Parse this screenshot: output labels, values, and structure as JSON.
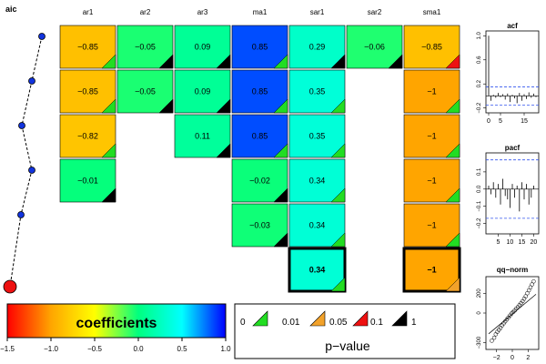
{
  "chart_data": [
    {
      "type": "heatmap",
      "aic_label": "aic",
      "columns": [
        "ar1",
        "ar2",
        "ar3",
        "ma1",
        "sar1",
        "sar2",
        "sma1"
      ],
      "rows": [
        {
          "aic_point": 1,
          "cells": [
            {
              "col": "ar1",
              "coef": -0.85,
              "label": "−0.85",
              "sig": "0"
            },
            {
              "col": "ar2",
              "coef": -0.05,
              "label": "−0.05",
              "sig": "0.1"
            },
            {
              "col": "ar3",
              "coef": 0.09,
              "label": "0.09",
              "sig": "0.1"
            },
            {
              "col": "ma1",
              "coef": 0.85,
              "label": "0.85",
              "sig": "0"
            },
            {
              "col": "sar1",
              "coef": 0.29,
              "label": "0.29",
              "sig": "0.1"
            },
            {
              "col": "sar2",
              "coef": -0.06,
              "label": "−0.06",
              "sig": "0.1"
            },
            {
              "col": "sma1",
              "coef": -0.85,
              "label": "−0.85",
              "sig": "0.05"
            }
          ]
        },
        {
          "aic_point": 2,
          "cells": [
            {
              "col": "ar1",
              "coef": -0.85,
              "label": "−0.85",
              "sig": "0"
            },
            {
              "col": "ar2",
              "coef": -0.05,
              "label": "−0.05",
              "sig": "0.1"
            },
            {
              "col": "ar3",
              "coef": 0.09,
              "label": "0.09",
              "sig": "0.1"
            },
            {
              "col": "ma1",
              "coef": 0.85,
              "label": "0.85",
              "sig": "0"
            },
            {
              "col": "sar1",
              "coef": 0.35,
              "label": "0.35",
              "sig": "0"
            },
            {
              "col": "sma1",
              "coef": -1,
              "label": "−1",
              "sig": "0"
            }
          ]
        },
        {
          "aic_point": 3,
          "cells": [
            {
              "col": "ar1",
              "coef": -0.82,
              "label": "−0.82",
              "sig": "0"
            },
            {
              "col": "ar3",
              "coef": 0.11,
              "label": "0.11",
              "sig": "0.1"
            },
            {
              "col": "ma1",
              "coef": 0.85,
              "label": "0.85",
              "sig": "0"
            },
            {
              "col": "sar1",
              "coef": 0.35,
              "label": "0.35",
              "sig": "0"
            },
            {
              "col": "sma1",
              "coef": -1,
              "label": "−1",
              "sig": "0"
            }
          ]
        },
        {
          "aic_point": 4,
          "cells": [
            {
              "col": "ar1",
              "coef": -0.01,
              "label": "−0.01",
              "sig": "0.1"
            },
            {
              "col": "ma1",
              "coef": -0.02,
              "label": "−0.02",
              "sig": "0.1"
            },
            {
              "col": "sar1",
              "coef": 0.34,
              "label": "0.34",
              "sig": "0"
            },
            {
              "col": "sma1",
              "coef": -1,
              "label": "−1",
              "sig": "0"
            }
          ]
        },
        {
          "aic_point": 5,
          "cells": [
            {
              "col": "ma1",
              "coef": -0.03,
              "label": "−0.03",
              "sig": "0.1"
            },
            {
              "col": "sar1",
              "coef": 0.34,
              "label": "0.34",
              "sig": "0"
            },
            {
              "col": "sma1",
              "coef": -1,
              "label": "−1",
              "sig": "0"
            }
          ]
        },
        {
          "aic_point": 6,
          "best": true,
          "cells": [
            {
              "col": "sar1",
              "coef": 0.34,
              "label": "0.34",
              "sig": "0"
            },
            {
              "col": "sma1",
              "coef": -1,
              "label": "−1",
              "sig": "0.01"
            }
          ]
        }
      ],
      "colorbar": {
        "title": "coefficients",
        "range": [
          -1.5,
          1.0
        ],
        "tick_values": [
          -1.5,
          -1.0,
          -0.5,
          0.0,
          0.5,
          1.0
        ],
        "tick_labels": [
          "−1.5",
          "−1.0",
          "−0.5",
          "0.0",
          "0.5",
          "1.0"
        ],
        "colors": [
          "#ff0000",
          "#ffa500",
          "#ffff00",
          "#00ff7f",
          "#00ffff",
          "#0000ff"
        ]
      },
      "pvalue_legend": {
        "title": "p−value",
        "thresholds": [
          "0",
          "0.01",
          "0.05",
          "0.1",
          "1"
        ],
        "colors": [
          "#22dd22",
          "#f2a22a",
          "#ee1111",
          "#000000"
        ]
      }
    },
    {
      "type": "bar",
      "title": "acf",
      "ylim": [
        -0.25,
        1.05
      ],
      "y_ticks": [
        -0.2,
        0.2,
        0.6,
        1.0
      ],
      "y_tick_labels": [
        "−0.2",
        "0.2",
        "0.6",
        "1.0"
      ],
      "xlim": [
        0,
        20
      ],
      "x_ticks": [
        0,
        5,
        15
      ],
      "x_tick_labels": [
        "0",
        "5",
        "15"
      ],
      "ci": 0.15,
      "lags": [
        0,
        1,
        2,
        3,
        4,
        5,
        6,
        7,
        8,
        9,
        10,
        11,
        12,
        13,
        14,
        15,
        16,
        17,
        18,
        19,
        20
      ],
      "values": [
        1.0,
        -0.08,
        0.02,
        -0.03,
        0.05,
        -0.02,
        0.03,
        -0.06,
        0.04,
        -0.1,
        0.02,
        -0.04,
        -0.12,
        0.05,
        -0.08,
        0.03,
        -0.05,
        0.06,
        -0.03,
        0.04,
        -0.02
      ]
    },
    {
      "type": "bar",
      "title": "pacf",
      "ylim": [
        -0.25,
        0.2
      ],
      "y_ticks": [
        -0.2,
        -0.1,
        0.0,
        0.1
      ],
      "y_tick_labels": [
        "−0.2",
        "−0.1",
        "0.0",
        "0.1"
      ],
      "xlim": [
        1,
        21
      ],
      "x_ticks": [
        5,
        10,
        15,
        20
      ],
      "x_tick_labels": [
        "5",
        "10",
        "15",
        "20"
      ],
      "ci": 0.17,
      "lags": [
        1,
        2,
        3,
        4,
        5,
        6,
        7,
        8,
        9,
        10,
        11,
        12,
        13,
        14,
        15,
        16,
        17,
        18,
        19,
        20
      ],
      "values": [
        0.02,
        -0.03,
        0.04,
        -0.05,
        0.03,
        -0.09,
        0.06,
        -0.04,
        -0.06,
        -0.11,
        0.03,
        -0.05,
        0.02,
        -0.13,
        0.04,
        -0.06,
        0.03,
        -0.09,
        -0.05,
        0.02
      ]
    },
    {
      "type": "scatter",
      "title": "qq−norm",
      "xlim": [
        -3,
        3
      ],
      "ylim": [
        -350,
        350
      ],
      "x_ticks": [
        -2,
        0,
        2
      ],
      "x_tick_labels": [
        "−2",
        "0",
        "2"
      ],
      "y_ticks": [
        -300,
        0,
        200
      ],
      "y_tick_labels": [
        "−300",
        "0",
        "200"
      ],
      "line": {
        "x": [
          -3,
          3
        ],
        "y": [
          -210,
          190
        ]
      },
      "points": [
        {
          "x": -2.6,
          "y": -280
        },
        {
          "x": -2.3,
          "y": -250
        },
        {
          "x": -2.1,
          "y": -215
        },
        {
          "x": -1.9,
          "y": -190
        },
        {
          "x": -1.7,
          "y": -170
        },
        {
          "x": -1.5,
          "y": -150
        },
        {
          "x": -1.3,
          "y": -125
        },
        {
          "x": -1.1,
          "y": -105
        },
        {
          "x": -0.9,
          "y": -85
        },
        {
          "x": -0.7,
          "y": -65
        },
        {
          "x": -0.5,
          "y": -45
        },
        {
          "x": -0.3,
          "y": -25
        },
        {
          "x": -0.1,
          "y": -5
        },
        {
          "x": 0.1,
          "y": 10
        },
        {
          "x": 0.3,
          "y": 25
        },
        {
          "x": 0.5,
          "y": 45
        },
        {
          "x": 0.7,
          "y": 60
        },
        {
          "x": 0.9,
          "y": 80
        },
        {
          "x": 1.1,
          "y": 100
        },
        {
          "x": 1.3,
          "y": 120
        },
        {
          "x": 1.5,
          "y": 145
        },
        {
          "x": 1.7,
          "y": 170
        },
        {
          "x": 1.9,
          "y": 200
        },
        {
          "x": 2.1,
          "y": 230
        },
        {
          "x": 2.3,
          "y": 260
        },
        {
          "x": 2.5,
          "y": 290
        },
        {
          "x": 2.7,
          "y": 320
        }
      ]
    }
  ]
}
